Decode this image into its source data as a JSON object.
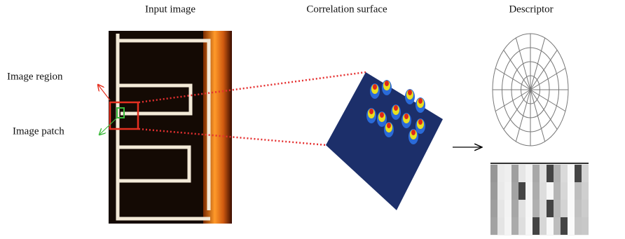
{
  "labels": {
    "input_image": "Input image",
    "correlation_surface": "Correlation surface",
    "descriptor": "Descriptor",
    "image_region": "Image region",
    "image_patch": "Image patch"
  }
}
